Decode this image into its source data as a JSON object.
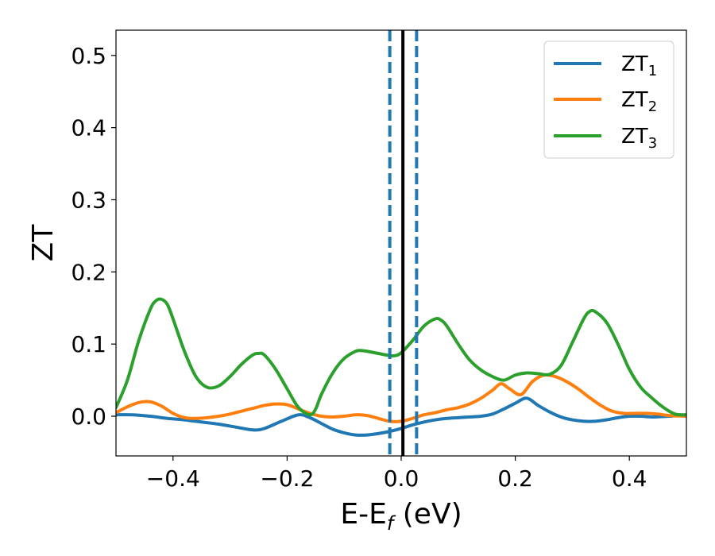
{
  "chart_data": {
    "type": "line",
    "title": "",
    "xlabel": {
      "main": "E-E",
      "subscript": "f",
      "suffix": " (eV)"
    },
    "ylabel": "ZT",
    "xlim": [
      -0.5,
      0.5
    ],
    "ylim": [
      -0.055,
      0.535
    ],
    "grid": false,
    "legend_position": "top-right",
    "x_ticks": [
      {
        "value": -0.4,
        "label": "−0.4"
      },
      {
        "value": -0.2,
        "label": "−0.2"
      },
      {
        "value": 0.0,
        "label": "0.0"
      },
      {
        "value": 0.2,
        "label": "0.2"
      },
      {
        "value": 0.4,
        "label": "0.4"
      }
    ],
    "y_ticks": [
      {
        "value": 0.0,
        "label": "0.0"
      },
      {
        "value": 0.1,
        "label": "0.1"
      },
      {
        "value": 0.2,
        "label": "0.2"
      },
      {
        "value": 0.3,
        "label": "0.3"
      },
      {
        "value": 0.4,
        "label": "0.4"
      },
      {
        "value": 0.5,
        "label": "0.5"
      }
    ],
    "series": [
      {
        "name": "ZT",
        "name_sub": "1",
        "color": "#1f77b4",
        "x": [
          -0.5,
          -0.47,
          -0.44,
          -0.41,
          -0.38,
          -0.35,
          -0.32,
          -0.29,
          -0.26,
          -0.24,
          -0.21,
          -0.18,
          -0.16,
          -0.14,
          -0.12,
          -0.1,
          -0.08,
          -0.06,
          -0.04,
          -0.02,
          0.0,
          0.02,
          0.04,
          0.06,
          0.08,
          0.1,
          0.12,
          0.14,
          0.16,
          0.18,
          0.2,
          0.22,
          0.24,
          0.26,
          0.28,
          0.3,
          0.32,
          0.34,
          0.36,
          0.38,
          0.4,
          0.42,
          0.44,
          0.47,
          0.5
        ],
        "y": [
          0.002,
          0.002,
          0.0,
          -0.003,
          -0.005,
          -0.008,
          -0.011,
          -0.015,
          -0.019,
          -0.017,
          -0.007,
          0.002,
          -0.002,
          -0.01,
          -0.018,
          -0.023,
          -0.026,
          -0.026,
          -0.024,
          -0.021,
          -0.017,
          -0.012,
          -0.008,
          -0.005,
          -0.003,
          -0.002,
          -0.001,
          0.0,
          0.003,
          0.01,
          0.018,
          0.025,
          0.015,
          0.006,
          -0.001,
          -0.005,
          -0.007,
          -0.007,
          -0.005,
          -0.002,
          0.0,
          0.0,
          -0.001,
          0.0,
          0.002
        ]
      },
      {
        "name": "ZT",
        "name_sub": "2",
        "color": "#ff7f0e",
        "x": [
          -0.5,
          -0.48,
          -0.46,
          -0.44,
          -0.42,
          -0.4,
          -0.38,
          -0.36,
          -0.34,
          -0.32,
          -0.3,
          -0.28,
          -0.26,
          -0.24,
          -0.22,
          -0.2,
          -0.18,
          -0.16,
          -0.14,
          -0.12,
          -0.1,
          -0.08,
          -0.06,
          -0.04,
          -0.02,
          0.0,
          0.02,
          0.04,
          0.06,
          0.08,
          0.1,
          0.12,
          0.14,
          0.16,
          0.175,
          0.19,
          0.21,
          0.23,
          0.25,
          0.27,
          0.29,
          0.31,
          0.33,
          0.35,
          0.37,
          0.39,
          0.41,
          0.43,
          0.45,
          0.47,
          0.5
        ],
        "y": [
          0.005,
          0.013,
          0.019,
          0.02,
          0.014,
          0.004,
          -0.002,
          -0.003,
          -0.002,
          0.0,
          0.003,
          0.007,
          0.011,
          0.015,
          0.017,
          0.016,
          0.01,
          0.004,
          0.0,
          -0.001,
          0.0,
          0.002,
          0.001,
          -0.003,
          -0.007,
          -0.007,
          -0.003,
          0.002,
          0.005,
          0.009,
          0.012,
          0.017,
          0.025,
          0.036,
          0.045,
          0.038,
          0.03,
          0.048,
          0.057,
          0.055,
          0.048,
          0.038,
          0.026,
          0.015,
          0.007,
          0.004,
          0.004,
          0.004,
          0.003,
          0.001,
          0.0
        ]
      },
      {
        "name": "ZT",
        "name_sub": "3",
        "color": "#2ca02c",
        "x": [
          -0.5,
          -0.48,
          -0.46,
          -0.44,
          -0.43,
          -0.42,
          -0.41,
          -0.4,
          -0.38,
          -0.36,
          -0.34,
          -0.32,
          -0.3,
          -0.28,
          -0.26,
          -0.25,
          -0.24,
          -0.22,
          -0.2,
          -0.18,
          -0.16,
          -0.15,
          -0.14,
          -0.12,
          -0.1,
          -0.08,
          -0.07,
          -0.06,
          -0.04,
          -0.02,
          -0.01,
          0.0,
          0.02,
          0.04,
          0.06,
          0.07,
          0.08,
          0.1,
          0.12,
          0.14,
          0.16,
          0.18,
          0.2,
          0.22,
          0.24,
          0.26,
          0.28,
          0.3,
          0.32,
          0.33,
          0.34,
          0.36,
          0.38,
          0.4,
          0.42,
          0.44,
          0.46,
          0.48,
          0.5
        ],
        "y": [
          0.012,
          0.05,
          0.105,
          0.148,
          0.16,
          0.162,
          0.155,
          0.135,
          0.09,
          0.055,
          0.04,
          0.042,
          0.055,
          0.072,
          0.085,
          0.087,
          0.085,
          0.065,
          0.038,
          0.012,
          0.002,
          0.01,
          0.03,
          0.06,
          0.08,
          0.09,
          0.091,
          0.09,
          0.087,
          0.084,
          0.084,
          0.088,
          0.105,
          0.125,
          0.135,
          0.133,
          0.125,
          0.1,
          0.078,
          0.064,
          0.055,
          0.05,
          0.057,
          0.06,
          0.059,
          0.058,
          0.07,
          0.102,
          0.135,
          0.145,
          0.145,
          0.13,
          0.1,
          0.065,
          0.04,
          0.025,
          0.012,
          0.003,
          0.002
        ]
      }
    ],
    "vlines": [
      {
        "x": 0.003,
        "style": "solid",
        "color": "#000000"
      },
      {
        "x": -0.02,
        "style": "dashed",
        "color": "#1f77b4"
      },
      {
        "x": 0.027,
        "style": "dashed",
        "color": "#1f77b4"
      }
    ]
  }
}
